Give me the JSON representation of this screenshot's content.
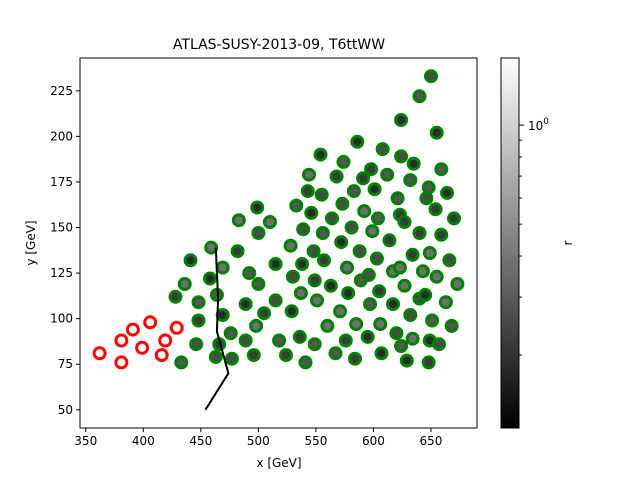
{
  "chart_data": {
    "type": "scatter",
    "title": "ATLAS-SUSY-2013-09, T6ttWW",
    "xlabel": "x [GeV]",
    "ylabel": "y [GeV]",
    "xlim": [
      345,
      690
    ],
    "ylim": [
      40,
      243
    ],
    "xticks": [
      350,
      400,
      450,
      500,
      550,
      600,
      650
    ],
    "yticks": [
      50,
      75,
      100,
      125,
      150,
      175,
      200,
      225
    ],
    "grid": false,
    "colorbar": {
      "label": "r",
      "scale": "log",
      "colormap": "gray",
      "range": [
        0.12,
        1.6
      ],
      "major_ticks": [
        1
      ],
      "major_tick_labels": [
        "10^0"
      ],
      "minor_ticks": [
        0.2,
        0.3,
        0.4,
        0.5,
        0.6,
        0.7,
        0.8,
        0.9
      ]
    },
    "series": [
      {
        "marker_edge": "#ff0000",
        "points": [
          [
            362,
            81
          ],
          [
            381,
            88
          ],
          [
            381,
            76
          ],
          [
            391,
            94
          ],
          [
            399,
            84
          ],
          [
            406,
            98
          ],
          [
            416,
            80
          ],
          [
            419,
            88
          ],
          [
            429,
            95
          ]
        ]
      },
      {
        "marker_edge": "#008000",
        "points": [
          [
            433,
            76
          ],
          [
            428,
            112
          ],
          [
            436,
            119
          ],
          [
            441,
            132
          ],
          [
            446,
            86
          ],
          [
            448,
            109
          ],
          [
            448,
            99
          ],
          [
            459,
            139
          ],
          [
            458,
            122
          ],
          [
            463,
            79
          ],
          [
            464,
            113
          ],
          [
            466,
            86
          ],
          [
            469,
            128
          ],
          [
            469,
            102
          ],
          [
            477,
            78
          ],
          [
            476,
            92
          ],
          [
            482,
            137
          ],
          [
            483,
            154
          ],
          [
            489,
            108
          ],
          [
            489,
            88
          ],
          [
            492,
            125
          ],
          [
            496,
            80
          ],
          [
            498,
            96
          ],
          [
            499,
            161
          ],
          [
            500,
            147
          ],
          [
            500,
            119
          ],
          [
            505,
            103
          ],
          [
            510,
            153
          ],
          [
            515,
            130
          ],
          [
            515,
            110
          ],
          [
            518,
            88
          ],
          [
            524,
            80
          ],
          [
            528,
            140
          ],
          [
            529,
            104
          ],
          [
            530,
            123
          ],
          [
            533,
            162
          ],
          [
            536,
            90
          ],
          [
            537,
            114
          ],
          [
            538,
            130
          ],
          [
            539,
            149
          ],
          [
            541,
            76
          ],
          [
            543,
            170
          ],
          [
            544,
            179
          ],
          [
            546,
            158
          ],
          [
            548,
            137
          ],
          [
            549,
            86
          ],
          [
            549,
            121
          ],
          [
            551,
            110
          ],
          [
            554,
            190
          ],
          [
            555,
            168
          ],
          [
            556,
            147
          ],
          [
            557,
            132
          ],
          [
            560,
            96
          ],
          [
            563,
            118
          ],
          [
            564,
            155
          ],
          [
            567,
            81
          ],
          [
            568,
            178
          ],
          [
            571,
            104
          ],
          [
            572,
            142
          ],
          [
            573,
            163
          ],
          [
            574,
            186
          ],
          [
            576,
            88
          ],
          [
            577,
            128
          ],
          [
            578,
            114
          ],
          [
            581,
            150
          ],
          [
            583,
            170
          ],
          [
            584,
            78
          ],
          [
            585,
            97
          ],
          [
            586,
            197
          ],
          [
            588,
            137
          ],
          [
            589,
            121
          ],
          [
            591,
            177
          ],
          [
            592,
            159
          ],
          [
            595,
            90
          ],
          [
            596,
            124
          ],
          [
            597,
            108
          ],
          [
            598,
            182
          ],
          [
            599,
            148
          ],
          [
            601,
            171
          ],
          [
            603,
            133
          ],
          [
            604,
            155
          ],
          [
            605,
            115
          ],
          [
            606,
            97
          ],
          [
            607,
            81
          ],
          [
            608,
            193
          ],
          [
            612,
            179
          ],
          [
            614,
            143
          ],
          [
            617,
            126
          ],
          [
            617,
            108
          ],
          [
            620,
            92
          ],
          [
            621,
            166
          ],
          [
            623,
            157
          ],
          [
            623,
            128
          ],
          [
            624,
            209
          ],
          [
            624,
            189
          ],
          [
            624,
            85
          ],
          [
            627,
            153
          ],
          [
            627,
            118
          ],
          [
            629,
            77
          ],
          [
            632,
            102
          ],
          [
            632,
            176
          ],
          [
            634,
            135
          ],
          [
            634,
            89
          ],
          [
            635,
            185
          ],
          [
            640,
            111
          ],
          [
            640,
            222
          ],
          [
            640,
            147
          ],
          [
            643,
            126
          ],
          [
            645,
            113
          ],
          [
            646,
            166
          ],
          [
            648,
            172
          ],
          [
            648,
            76
          ],
          [
            649,
            136
          ],
          [
            649,
            88
          ],
          [
            650,
            233
          ],
          [
            651,
            99
          ],
          [
            654,
            160
          ],
          [
            655,
            123
          ],
          [
            655,
            202
          ],
          [
            657,
            86
          ],
          [
            659,
            182
          ],
          [
            659,
            146
          ],
          [
            663,
            109
          ],
          [
            664,
            169
          ],
          [
            666,
            132
          ],
          [
            668,
            96
          ],
          [
            670,
            155
          ],
          [
            673,
            119
          ]
        ]
      }
    ],
    "exclusion_line": [
      [
        454,
        50
      ],
      [
        474,
        70
      ],
      [
        464,
        93
      ],
      [
        465,
        111
      ],
      [
        463,
        139
      ]
    ]
  }
}
